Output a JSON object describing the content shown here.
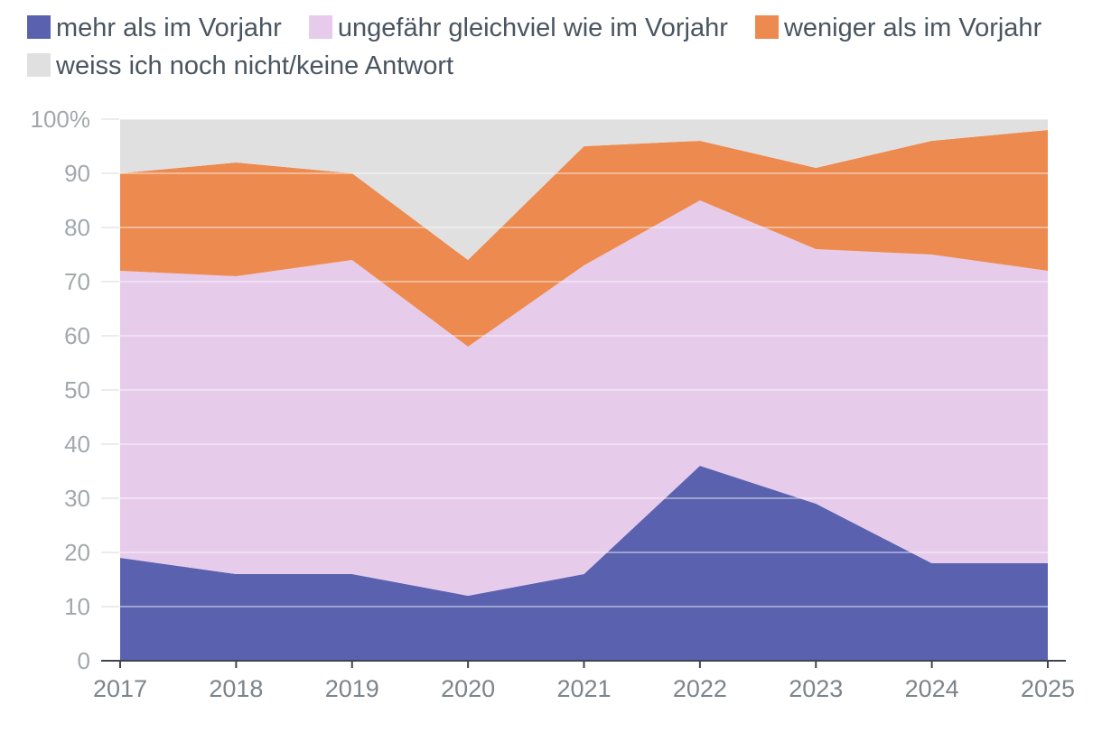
{
  "chart_data": {
    "type": "area",
    "stacked": true,
    "categories": [
      "2017",
      "2018",
      "2019",
      "2020",
      "2021",
      "2022",
      "2023",
      "2024",
      "2025"
    ],
    "series": [
      {
        "name": "mehr als im Vorjahr",
        "color": "#5a62b0",
        "values": [
          19,
          16,
          16,
          12,
          16,
          36,
          29,
          18,
          18
        ]
      },
      {
        "name": "ungefähr gleichviel wie im Vorjahr",
        "color": "#e6cbeb",
        "values": [
          53,
          55,
          58,
          46,
          57,
          49,
          47,
          57,
          54
        ]
      },
      {
        "name": "weniger als im Vorjahr",
        "color": "#ed8a4f",
        "values": [
          18,
          21,
          16,
          16,
          22,
          11,
          15,
          21,
          26
        ]
      },
      {
        "name": "weiss ich noch nicht/keine Antwort",
        "color": "#e0e0e0",
        "values": [
          10,
          8,
          10,
          26,
          5,
          4,
          9,
          4,
          2
        ]
      }
    ],
    "ylim": [
      0,
      100
    ],
    "yticks": [
      "0",
      "10",
      "20",
      "30",
      "40",
      "50",
      "60",
      "70",
      "80",
      "90",
      "100%"
    ],
    "title": "",
    "xlabel": "",
    "ylabel": "",
    "legend_position": "top"
  }
}
